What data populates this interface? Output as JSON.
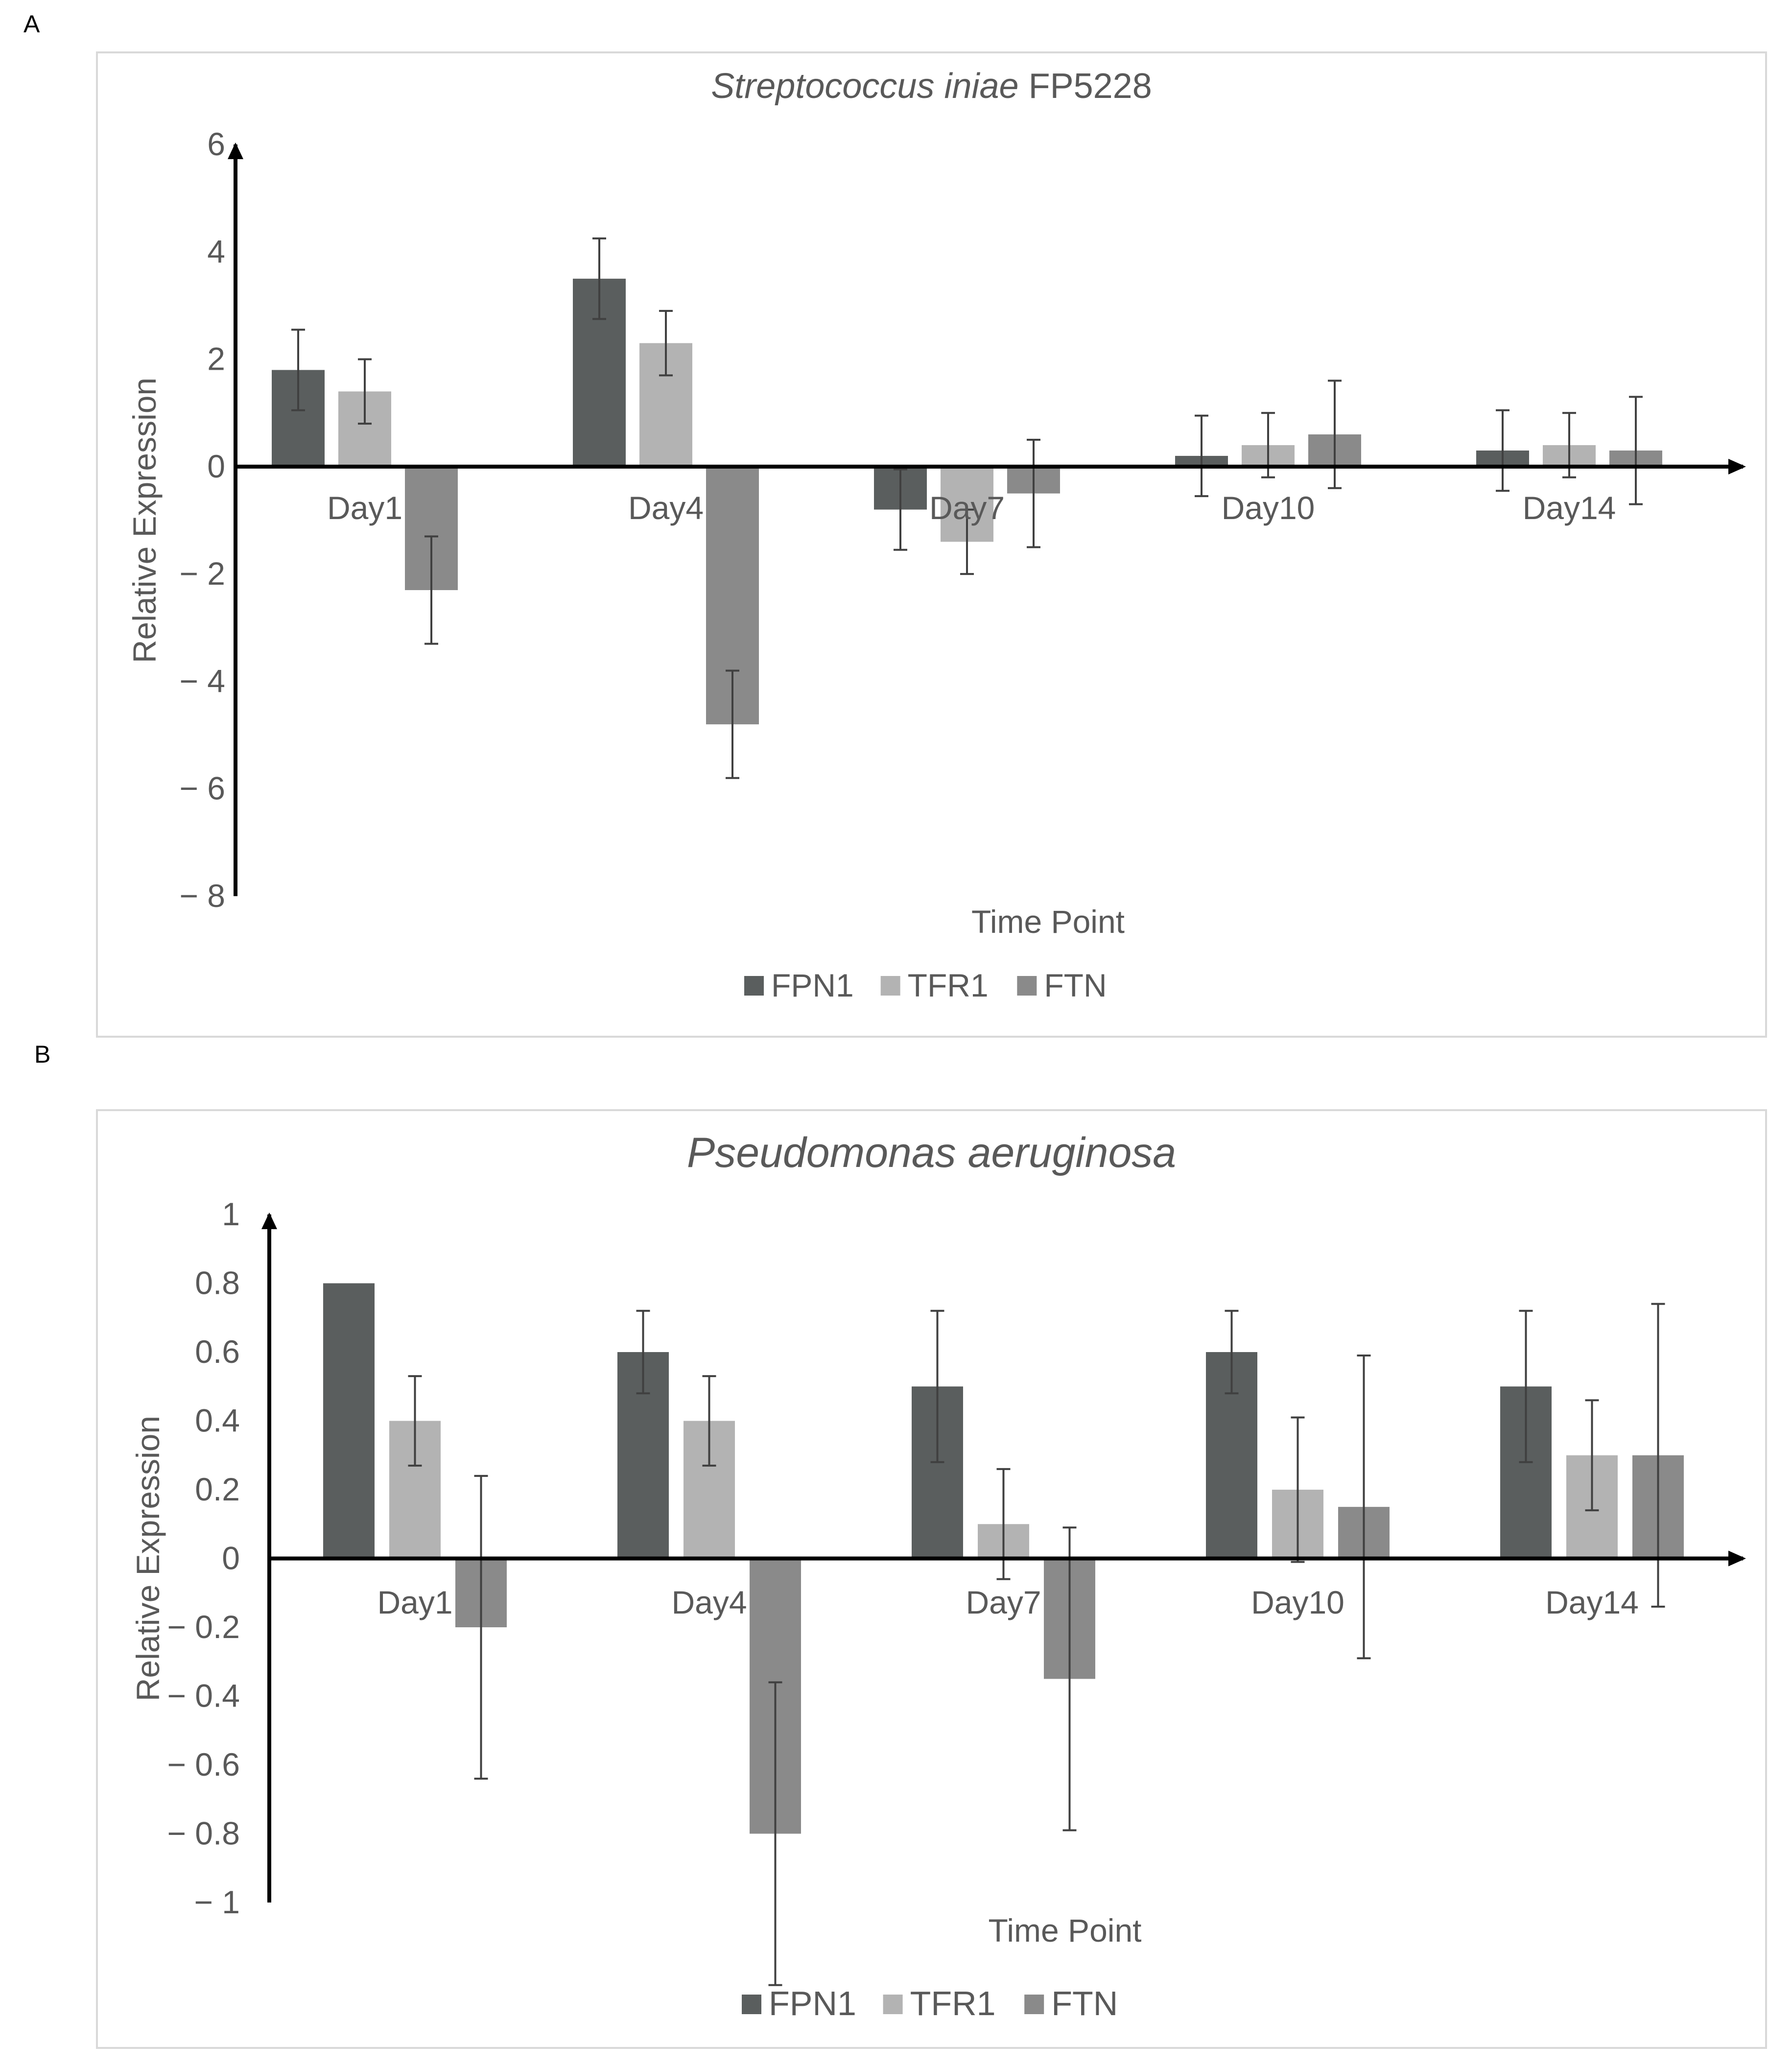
{
  "chart_data": [
    {
      "panel_label": "A",
      "type": "bar",
      "title_italic": "Streptococcus iniae",
      "title_rest": " FP5228",
      "xlabel": "Time Point",
      "ylabel": "Relative Expression",
      "ylim": [
        -8,
        6
      ],
      "yticks": [
        -8,
        -6,
        -4,
        -2,
        0,
        2,
        4,
        6
      ],
      "ytick_labels": [
        "− 8",
        "− 6",
        "− 4",
        "− 2",
        "0",
        "2",
        "4",
        "6"
      ],
      "categories": [
        "Day1",
        "Day4",
        "Day7",
        "Day10",
        "Day14"
      ],
      "series": [
        {
          "name": "FPN1",
          "values": [
            1.8,
            3.5,
            -0.8,
            0.2,
            0.3
          ],
          "errors": [
            0.75,
            0.75,
            0.75,
            0.75,
            0.75
          ]
        },
        {
          "name": "TFR1",
          "values": [
            1.4,
            2.3,
            -1.4,
            0.4,
            0.4
          ],
          "errors": [
            0.6,
            0.6,
            0.6,
            0.6,
            0.6
          ]
        },
        {
          "name": "FTN",
          "values": [
            -2.3,
            -4.8,
            -0.5,
            0.6,
            0.3
          ],
          "errors": [
            1.0,
            1.0,
            1.0,
            1.0,
            1.0
          ]
        }
      ],
      "grid": false,
      "legend_position": "bottom-center"
    },
    {
      "panel_label": "B",
      "type": "bar",
      "title_italic": "Pseudomonas aeruginosa",
      "title_rest": "",
      "xlabel": "Time Point",
      "ylabel": "Relative Expression",
      "ylim": [
        -1,
        1
      ],
      "yticks": [
        -1,
        -0.8,
        -0.6,
        -0.4,
        -0.2,
        0,
        0.2,
        0.4,
        0.6,
        0.8,
        1
      ],
      "ytick_labels": [
        "− 1",
        "− 0.8",
        "− 0.6",
        "− 0.4",
        "− 0.2",
        "0",
        "0.2",
        "0.4",
        "0.6",
        "0.8",
        "1"
      ],
      "categories": [
        "Day1",
        "Day4",
        "Day7",
        "Day10",
        "Day14"
      ],
      "series": [
        {
          "name": "FPN1",
          "values": [
            0.8,
            0.6,
            0.5,
            0.6,
            0.5
          ],
          "errors": [
            0.0,
            0.12,
            0.22,
            0.12,
            0.22
          ]
        },
        {
          "name": "TFR1",
          "values": [
            0.4,
            0.4,
            0.1,
            0.2,
            0.3
          ],
          "errors": [
            0.13,
            0.13,
            0.16,
            0.21,
            0.16
          ]
        },
        {
          "name": "FTN",
          "values": [
            -0.2,
            -0.8,
            -0.35,
            0.15,
            0.3
          ],
          "errors": [
            0.44,
            0.44,
            0.44,
            0.44,
            0.44
          ]
        }
      ],
      "grid": false,
      "legend_position": "bottom-center"
    }
  ],
  "colors": {
    "FPN1": "#5a5e5e",
    "TFR1": "#b3b3b3",
    "FTN": "#8a8a8a",
    "text": "#595959",
    "axis": "#000000",
    "frame": "#d9d9d9",
    "error_bar": "#404040"
  }
}
